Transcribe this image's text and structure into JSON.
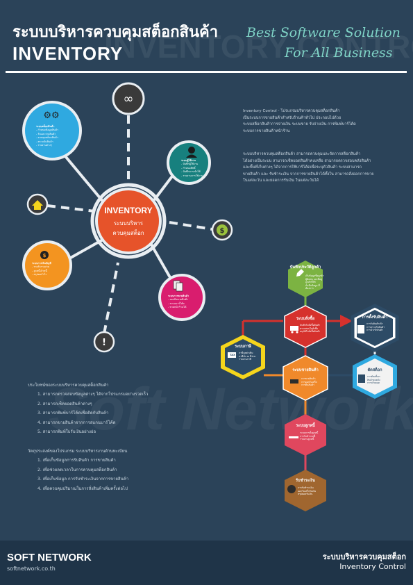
{
  "header": {
    "title_th": "ระบบบริหารควบคุมสต็อกสินค้า",
    "title_en": "INVENTORY",
    "slogan_line1": "Best Software Solution",
    "slogan_line2": "For All Business",
    "watermark_top": "INVENTORY CONTROL",
    "watermark_mid": "Soft Network"
  },
  "hub": {
    "title": "INVENTORY",
    "line2": "ระบบบริหาร",
    "line3": "ควบคุมสต็อก"
  },
  "satellites": {
    "blue": {
      "lines": [
        "ระบบสต็อกสินค้า",
        "- กำหนดข้อมูลสินค้า",
        "- รับและจ่ายสินค้า",
        "- ควบคุมสต็อกสินค้า",
        "- ตรวจนับสินค้า",
        "- รายงานต่างๆ"
      ]
    },
    "teal": {
      "lines": [
        "ระบบผู้ใช้งาน",
        "- บันทึกผู้ใช้งาน",
        "- กำหนดสิทธิ์",
        "- บันทึกการเข้าใช้",
        "- รายงานการใช้งาน"
      ]
    },
    "orange": {
      "lines": [
        "ระบบการเงินบัญชี",
        "- รายรับรายจ่าย",
        "- ลูกหนี้เจ้าหนี้",
        "- สรุปผลกำไร"
      ]
    },
    "pink": {
      "lines": [
        "ระบบการขายสินค้า",
        "- ออกบิลขายสินค้า",
        "- ระบบบาร์โค้ด",
        "- ขายหน้าร้านได้"
      ]
    }
  },
  "intro": {
    "para1": [
      "Inventory Control - โปรแกรมบริหารควบคุมสต็อกสินค้า",
      "    เป็นระบบการขายสินค้าสำหรับร้านค้าทั่วไป ประกอบไปด้วย",
      "ระบบสต็อกสินค้าการจ่ายเงิน ระบบขาย รับจ่ายเงิน การพิมพ์บาร์โค้ด",
      "ระบบการขายสินค้าหน้าร้าน"
    ],
    "para2": [
      "    ระบบบริหารควบคุมสต็อกสินค้า สามารถควบคุมและจัดการสต็อกสินค้า",
      "ได้อย่างเป็นระบบ สามารถเช็คยอดสินค้าคงเหลือ สามารถตรวจสอบคลังสินค้า",
      "และพื้นที่เก็บต่างๆ ได้จากการใช้บาร์โค้ดเพื่อระบุตัวสินค้า ระบบสามารถ",
      "ขายสินค้า และ รับชำระเงิน จากการขายสินค้าได้ทั้งใน สามารถสั่งออกการขาย",
      "ในแต่ละวัน และยอดการรับเงิน ในแต่ละวันได้"
    ]
  },
  "benefits": {
    "heading": "ประโยชน์ของระบบบริหารควบคุมสต็อกสินค้า",
    "items": [
      "1. สามารถตรวจสอบข้อมูลต่างๆ ได้จากโปรแกรมอย่างรวดเร็ว",
      "2. สามารถเช็คยอดสินค้าต่างๆ",
      "3. สามารถพิมพ์บาร์โค้ดเพื่อติดกับสินค้า",
      "4. สามารถขายสินค้าจากการสแกนบาร์โค้ด",
      "5. สามารถพิมพ์ใบรับเงินอย่างย่อ"
    ]
  },
  "objectives": {
    "heading": "วัตถุประสงค์ของโปรแกรม ระบบบริหารงานด้านทะเบียน",
    "items": [
      "1. เพื่อเก็บข้อมูลการรับสินค้า การขายสินค้า",
      "2. เพื่อช่วยลดเวลาในการควบคุมสต็อกสินค้า",
      "3. เพื่อเก็บข้อมูล การรับชำระเงินจากการขายสินค้า",
      "4. เพื่อควบคุมปริมาณในการสั่งสินค้าเพิ่มครั้งต่อไป"
    ]
  },
  "flow": {
    "record": {
      "title": "บันทึกประวัติลูกค้า",
      "lines": [
        "เก็บข้อมูลชื่อลูกค้า",
        "ผู้ติดต่อ และที่อยู่ลูกค้าที่ใช้",
        "บันทึกข้อมูล ที่ต้องการ"
      ]
    },
    "purchase": {
      "title": "ระบบสั่งซื้อ",
      "lines": [
        "บันทึกใบสั่งซื้อสินค้า",
        "ตรวจสอบใบสั่งซื้อ",
        "อนุมัติใบสั่งซื้อสินค้า"
      ]
    },
    "receive": {
      "title": "การตั้งรับสินค้า",
      "lines": [
        "การรับสินค้าเข้า",
        "การตรวจรับสินค้า",
        "การนำเข้าสินค้า"
      ]
    },
    "tax": {
      "title": "ระบบภาษี",
      "tag": "TAX",
      "lines": [
        "ภาษีมูลค่าเพิ่ม",
        "ภาษีหัก ณ ที่จ่าย",
        "รายงานภาษี"
      ]
    },
    "sales": {
      "title": "ระบบขายสินค้า",
      "lines": [
        "การขายสินค้า",
        "การออกใบเสร็จ",
        "การคืนสินค้า"
      ]
    },
    "stock": {
      "title": "ตัดสต็อก",
      "lines": [
        "การตัดสต็อก",
        "สินค้าคงคลัง",
        "การปรับยอด"
      ]
    },
    "debtor": {
      "title": "ระบบลูกหนี้",
      "lines": [
        "ระบบการตั้งลูกหนี้",
        "การรับชำระหนี้",
        "รายงานลูกหนี้"
      ]
    },
    "payment": {
      "title": "รับชำระเงิน",
      "lines": [
        "การรับชำระเงิน",
        "ออกใบเสร็จรับเงิน",
        "สรุปยอดรับเงิน"
      ]
    }
  },
  "footer": {
    "brand": "SOFT NETWORK",
    "url": "softnetwork.co.th",
    "th": "ระบบบริหารควบคุมสต็อก",
    "en": "Inventory Control"
  },
  "colors": {
    "bg": "#2b4359",
    "hub": "#e6532a",
    "blue": "#2fa9e0",
    "teal": "#17807e",
    "orange": "#f39420",
    "pink": "#d91d6e",
    "green": "#7cb342",
    "red": "#d6312d",
    "flowOrange": "#f0892b",
    "yellow": "#f5d51c",
    "navy": "#2d4b66",
    "rose": "#e0475e",
    "brown": "#a0662f"
  }
}
